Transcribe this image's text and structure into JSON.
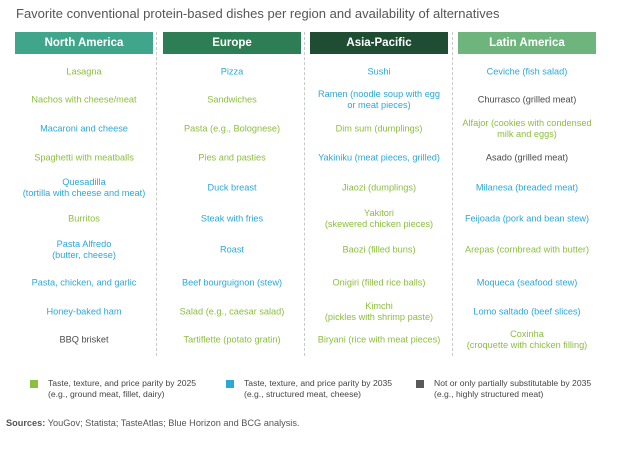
{
  "title": "Favorite conventional protein-based dishes per region and availability of alternatives",
  "colors": {
    "green": "#8CBE3F",
    "blue": "#2DA7D8",
    "gray": "#4A4A4A",
    "header_north_america": "#3FA68C",
    "header_europe": "#2D7D55",
    "header_asia_pacific": "#1F4D33",
    "header_latin_america": "#6DB57C"
  },
  "chart_data": {
    "type": "table",
    "columns": [
      {
        "region": "North America",
        "dishes": [
          {
            "name": "Lasagna",
            "category": "2025"
          },
          {
            "name": "Nachos with cheese/meat",
            "category": "2025"
          },
          {
            "name": "Macaroni and cheese",
            "category": "2035"
          },
          {
            "name": "Spaghetti with meatballs",
            "category": "2025"
          },
          {
            "name": "Quesadilla\n(tortilla with cheese and meat)",
            "category": "2035"
          },
          {
            "name": "Burritos",
            "category": "2025"
          },
          {
            "name": "Pasta Alfredo\n(butter, cheese)",
            "category": "2035"
          },
          {
            "name": "Pasta, chicken, and garlic",
            "category": "2035"
          },
          {
            "name": "Honey-baked ham",
            "category": "2035"
          },
          {
            "name": "BBQ brisket",
            "category": "not"
          }
        ]
      },
      {
        "region": "Europe",
        "dishes": [
          {
            "name": "Pizza",
            "category": "2035"
          },
          {
            "name": "Sandwiches",
            "category": "2025"
          },
          {
            "name": "Pasta (e.g., Bolognese)",
            "category": "2025"
          },
          {
            "name": "Pies and pasties",
            "category": "2025"
          },
          {
            "name": "Duck breast",
            "category": "2035"
          },
          {
            "name": "Steak with fries",
            "category": "2035"
          },
          {
            "name": "Roast",
            "category": "2035"
          },
          {
            "name": "Beef bourguignon (stew)",
            "category": "2035"
          },
          {
            "name": "Salad (e.g., caesar salad)",
            "category": "2025"
          },
          {
            "name": "Tartiflette (potato gratin)",
            "category": "2025"
          }
        ]
      },
      {
        "region": "Asia-Pacific",
        "dishes": [
          {
            "name": "Sushi",
            "category": "2035"
          },
          {
            "name": "Ramen (noodle soup with egg\nor meat pieces)",
            "category": "2035"
          },
          {
            "name": "Dim sum (dumplings)",
            "category": "2025"
          },
          {
            "name": "Yakiniku (meat pieces, grilled)",
            "category": "2035"
          },
          {
            "name": "Jiaozi (dumplings)",
            "category": "2025"
          },
          {
            "name": "Yakitori\n(skewered chicken pieces)",
            "category": "2025"
          },
          {
            "name": "Baozi (filled buns)",
            "category": "2025"
          },
          {
            "name": "Onigiri (filled rice balls)",
            "category": "2025"
          },
          {
            "name": "Kimchi\n(pickles with shrimp paste)",
            "category": "2025"
          },
          {
            "name": "Biryani (rice with meat pieces)",
            "category": "2025"
          }
        ]
      },
      {
        "region": "Latin America",
        "dishes": [
          {
            "name": "Ceviche (fish salad)",
            "category": "2035"
          },
          {
            "name": "Churrasco (grilled meat)",
            "category": "not"
          },
          {
            "name": "Alfajor (cookies with condensed\nmilk and eggs)",
            "category": "2025"
          },
          {
            "name": "Asado (grilled meat)",
            "category": "not"
          },
          {
            "name": "Milanesa (breaded meat)",
            "category": "2035"
          },
          {
            "name": "Feijoada (pork and bean stew)",
            "category": "2035"
          },
          {
            "name": "Arepas (cornbread with butter)",
            "category": "2025"
          },
          {
            "name": "Moqueca (seafood stew)",
            "category": "2035"
          },
          {
            "name": "Lomo saltado (beef slices)",
            "category": "2035"
          },
          {
            "name": "Coxinha\n(croquette with chicken filling)",
            "category": "2025"
          }
        ]
      }
    ],
    "legend": [
      {
        "key": "2025",
        "label": "Taste, texture, and price parity by 2025",
        "example": "(e.g., ground meat, fillet, dairy)"
      },
      {
        "key": "2035",
        "label": "Taste, texture, and price parity by 2035",
        "example": "(e.g., structured meat, cheese)"
      },
      {
        "key": "not",
        "label": "Not or only partially substitutable by 2035",
        "example": "(e.g., highly structured meat)"
      }
    ]
  },
  "source": {
    "label": "Sources:",
    "text": "YouGov; Statista; TasteAtlas; Blue Horizon and BCG analysis."
  }
}
